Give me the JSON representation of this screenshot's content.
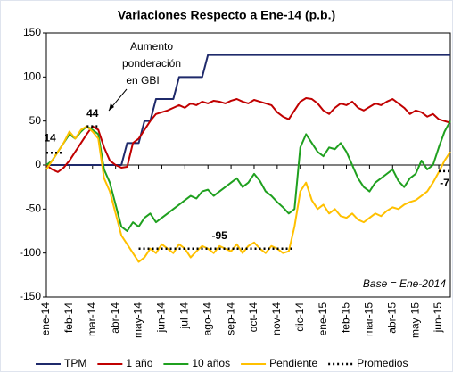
{
  "chart_data": {
    "type": "line",
    "title": "Variaciones Respecto a Ene-14 (p.b.)",
    "annotation_lines": [
      "Aumento",
      "ponderación",
      "en GBI"
    ],
    "note": "Base = Ene-2014",
    "categories": [
      "ene-14",
      null,
      null,
      null,
      "feb-14",
      null,
      null,
      null,
      "mar-14",
      null,
      null,
      null,
      "abr-14",
      null,
      null,
      null,
      "may-14",
      null,
      null,
      null,
      "jun-14",
      null,
      null,
      null,
      "jul-14",
      null,
      null,
      null,
      "ago-14",
      null,
      null,
      null,
      "sep-14",
      null,
      null,
      null,
      "oct-14",
      null,
      null,
      null,
      "nov-14",
      null,
      null,
      null,
      "dic-14",
      null,
      null,
      null,
      "ene-15",
      null,
      null,
      null,
      "feb-15",
      null,
      null,
      null,
      "mar-15",
      null,
      null,
      null,
      "abr-15",
      null,
      null,
      null,
      "may-15",
      null,
      null,
      null,
      "jun-15",
      null,
      null
    ],
    "ylim": [
      -150,
      150
    ],
    "yticks": [
      -150,
      -100,
      -50,
      0,
      50,
      100,
      150
    ],
    "series": [
      {
        "name": "TPM",
        "color": "#1f2a6b",
        "values": [
          0,
          0,
          0,
          0,
          0,
          0,
          0,
          0,
          0,
          0,
          0,
          0,
          0,
          0,
          25,
          25,
          25,
          50,
          50,
          75,
          75,
          75,
          75,
          100,
          100,
          100,
          100,
          100,
          125,
          125,
          125,
          125,
          125,
          125,
          125,
          125,
          125,
          125,
          125,
          125,
          125,
          125,
          125,
          125,
          125,
          125,
          125,
          125,
          125,
          125,
          125,
          125,
          125,
          125,
          125,
          125,
          125,
          125,
          125,
          125,
          125,
          125,
          125,
          125,
          125,
          125,
          125,
          125,
          125,
          125,
          125
        ]
      },
      {
        "name": "1 año",
        "color": "#c00000",
        "values": [
          0,
          -5,
          -8,
          -3,
          5,
          15,
          25,
          35,
          44,
          40,
          20,
          5,
          0,
          -3,
          -2,
          25,
          30,
          40,
          50,
          58,
          60,
          62,
          65,
          68,
          65,
          70,
          68,
          72,
          70,
          73,
          72,
          70,
          73,
          75,
          72,
          70,
          74,
          72,
          70,
          68,
          60,
          55,
          52,
          62,
          72,
          76,
          75,
          70,
          62,
          58,
          65,
          70,
          68,
          72,
          65,
          62,
          66,
          70,
          68,
          72,
          75,
          70,
          65,
          58,
          62,
          60,
          55,
          58,
          52,
          50,
          48
        ]
      },
      {
        "name": "10 años",
        "color": "#1fa01f",
        "values": [
          0,
          5,
          15,
          25,
          35,
          30,
          38,
          44,
          40,
          35,
          -5,
          -20,
          -45,
          -70,
          -75,
          -65,
          -70,
          -60,
          -55,
          -65,
          -60,
          -55,
          -50,
          -45,
          -40,
          -35,
          -38,
          -30,
          -28,
          -35,
          -30,
          -25,
          -20,
          -15,
          -25,
          -20,
          -10,
          -18,
          -30,
          -35,
          -42,
          -48,
          -55,
          -50,
          20,
          35,
          25,
          15,
          10,
          20,
          18,
          25,
          15,
          0,
          -15,
          -25,
          -30,
          -20,
          -15,
          -10,
          -5,
          -18,
          -25,
          -15,
          -10,
          5,
          -5,
          0,
          20,
          38,
          50
        ]
      },
      {
        "name": "Pendiente",
        "color": "#ffc000",
        "values": [
          -5,
          5,
          15,
          25,
          38,
          30,
          40,
          44,
          38,
          30,
          -15,
          -30,
          -55,
          -80,
          -90,
          -100,
          -110,
          -105,
          -95,
          -100,
          -90,
          -95,
          -100,
          -90,
          -95,
          -105,
          -98,
          -92,
          -95,
          -100,
          -92,
          -95,
          -98,
          -90,
          -100,
          -92,
          -88,
          -95,
          -100,
          -92,
          -95,
          -100,
          -98,
          -70,
          -30,
          -20,
          -40,
          -50,
          -45,
          -55,
          -50,
          -58,
          -60,
          -55,
          -62,
          -65,
          -60,
          -55,
          -58,
          -52,
          -48,
          -50,
          -45,
          -42,
          -40,
          -35,
          -30,
          -20,
          -8,
          5,
          15
        ]
      },
      {
        "name": "Promedios",
        "color": "#000000",
        "dotted": true,
        "values": [
          14,
          14,
          14,
          14,
          null,
          null,
          null,
          44,
          44,
          44,
          null,
          null,
          null,
          null,
          null,
          null,
          -95,
          -95,
          -95,
          -95,
          -95,
          -95,
          -95,
          -95,
          -95,
          -95,
          -95,
          -95,
          -95,
          -95,
          -95,
          -95,
          -95,
          -95,
          -95,
          -95,
          -95,
          -95,
          -95,
          -95,
          -95,
          -95,
          -95,
          -95,
          null,
          null,
          null,
          null,
          null,
          null,
          null,
          null,
          null,
          null,
          null,
          null,
          null,
          null,
          null,
          null,
          null,
          null,
          null,
          null,
          null,
          null,
          null,
          null,
          -7,
          -7,
          -7
        ]
      }
    ]
  }
}
